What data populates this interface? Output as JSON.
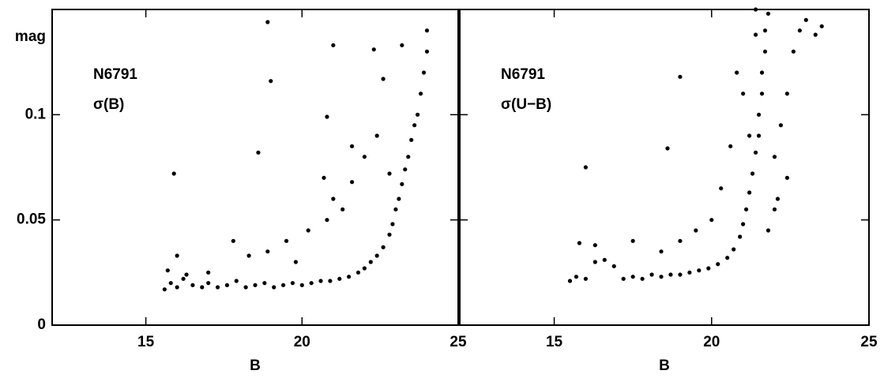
{
  "chart_data": [
    {
      "type": "scatter",
      "xlabel": "B",
      "ylabel": "mag",
      "annotations": [
        "N6791",
        "σ(B)"
      ],
      "xlim": [
        12,
        25
      ],
      "ylim": [
        0,
        0.15
      ],
      "xticks": [
        15,
        20,
        25
      ],
      "yticks": [
        0,
        0.05,
        0.1
      ],
      "ytick_labels": true,
      "color": "#000000",
      "x": [
        15.6,
        15.8,
        16.0,
        16.2,
        16.5,
        16.8,
        17.0,
        17.3,
        17.6,
        17.9,
        18.2,
        18.5,
        18.8,
        19.1,
        19.4,
        19.7,
        20.0,
        20.3,
        20.6,
        20.9,
        21.2,
        21.5,
        21.8,
        22.0,
        22.2,
        22.4,
        22.6,
        22.8,
        22.9,
        23.0,
        23.1,
        23.2,
        23.3,
        23.4,
        23.5,
        23.6,
        23.7,
        23.8,
        23.9,
        24.0,
        24.0,
        15.7,
        16.0,
        16.3,
        17.8,
        18.3,
        18.9,
        19.5,
        20.2,
        20.8,
        21.0,
        21.3,
        21.6,
        22.0,
        22.4,
        22.8,
        20.7,
        19.8,
        17.0,
        15.9,
        18.6,
        19.0,
        18.9,
        20.8,
        21.0,
        22.3,
        22.6,
        23.2,
        21.6
      ],
      "y": [
        0.017,
        0.02,
        0.018,
        0.022,
        0.019,
        0.018,
        0.02,
        0.018,
        0.019,
        0.021,
        0.018,
        0.019,
        0.02,
        0.018,
        0.019,
        0.02,
        0.019,
        0.02,
        0.021,
        0.021,
        0.022,
        0.023,
        0.025,
        0.027,
        0.03,
        0.033,
        0.037,
        0.043,
        0.048,
        0.055,
        0.06,
        0.067,
        0.074,
        0.08,
        0.088,
        0.095,
        0.1,
        0.11,
        0.12,
        0.13,
        0.14,
        0.026,
        0.033,
        0.024,
        0.04,
        0.033,
        0.035,
        0.04,
        0.045,
        0.05,
        0.06,
        0.055,
        0.068,
        0.08,
        0.09,
        0.072,
        0.07,
        0.03,
        0.025,
        0.072,
        0.082,
        0.116,
        0.144,
        0.099,
        0.133,
        0.131,
        0.117,
        0.133,
        0.085
      ]
    },
    {
      "type": "scatter",
      "xlabel": "B",
      "annotations": [
        "N6791",
        "σ(U−B)"
      ],
      "xlim": [
        12,
        25
      ],
      "ylim": [
        0,
        0.15
      ],
      "xticks": [
        15,
        20,
        25
      ],
      "yticks": [
        0,
        0.05,
        0.1
      ],
      "ytick_labels": false,
      "color": "#000000",
      "x": [
        15.5,
        15.7,
        16.0,
        16.3,
        16.6,
        16.9,
        17.2,
        17.5,
        17.8,
        18.1,
        18.4,
        18.7,
        19.0,
        19.3,
        19.6,
        19.9,
        20.2,
        20.5,
        20.7,
        20.9,
        21.0,
        21.1,
        21.2,
        21.3,
        21.4,
        21.5,
        21.5,
        21.6,
        21.6,
        21.7,
        21.7,
        21.8,
        22.0,
        22.2,
        22.4,
        22.6,
        22.8,
        23.0,
        23.3,
        23.5,
        22.1,
        22.4,
        21.8,
        22.0,
        21.2,
        21.0,
        20.8,
        20.6,
        20.3,
        20.0,
        19.5,
        19.0,
        18.4,
        17.5,
        16.3,
        15.8,
        21.4,
        16.0,
        18.6,
        19.0,
        21.4
      ],
      "y": [
        0.021,
        0.023,
        0.022,
        0.03,
        0.031,
        0.028,
        0.022,
        0.023,
        0.022,
        0.024,
        0.023,
        0.024,
        0.024,
        0.025,
        0.026,
        0.027,
        0.029,
        0.032,
        0.036,
        0.042,
        0.048,
        0.055,
        0.063,
        0.072,
        0.082,
        0.09,
        0.1,
        0.11,
        0.12,
        0.13,
        0.14,
        0.148,
        0.08,
        0.095,
        0.11,
        0.13,
        0.14,
        0.145,
        0.138,
        0.142,
        0.06,
        0.07,
        0.045,
        0.055,
        0.09,
        0.11,
        0.12,
        0.085,
        0.065,
        0.05,
        0.045,
        0.04,
        0.035,
        0.04,
        0.038,
        0.039,
        0.15,
        0.075,
        0.084,
        0.118,
        0.138
      ]
    }
  ]
}
